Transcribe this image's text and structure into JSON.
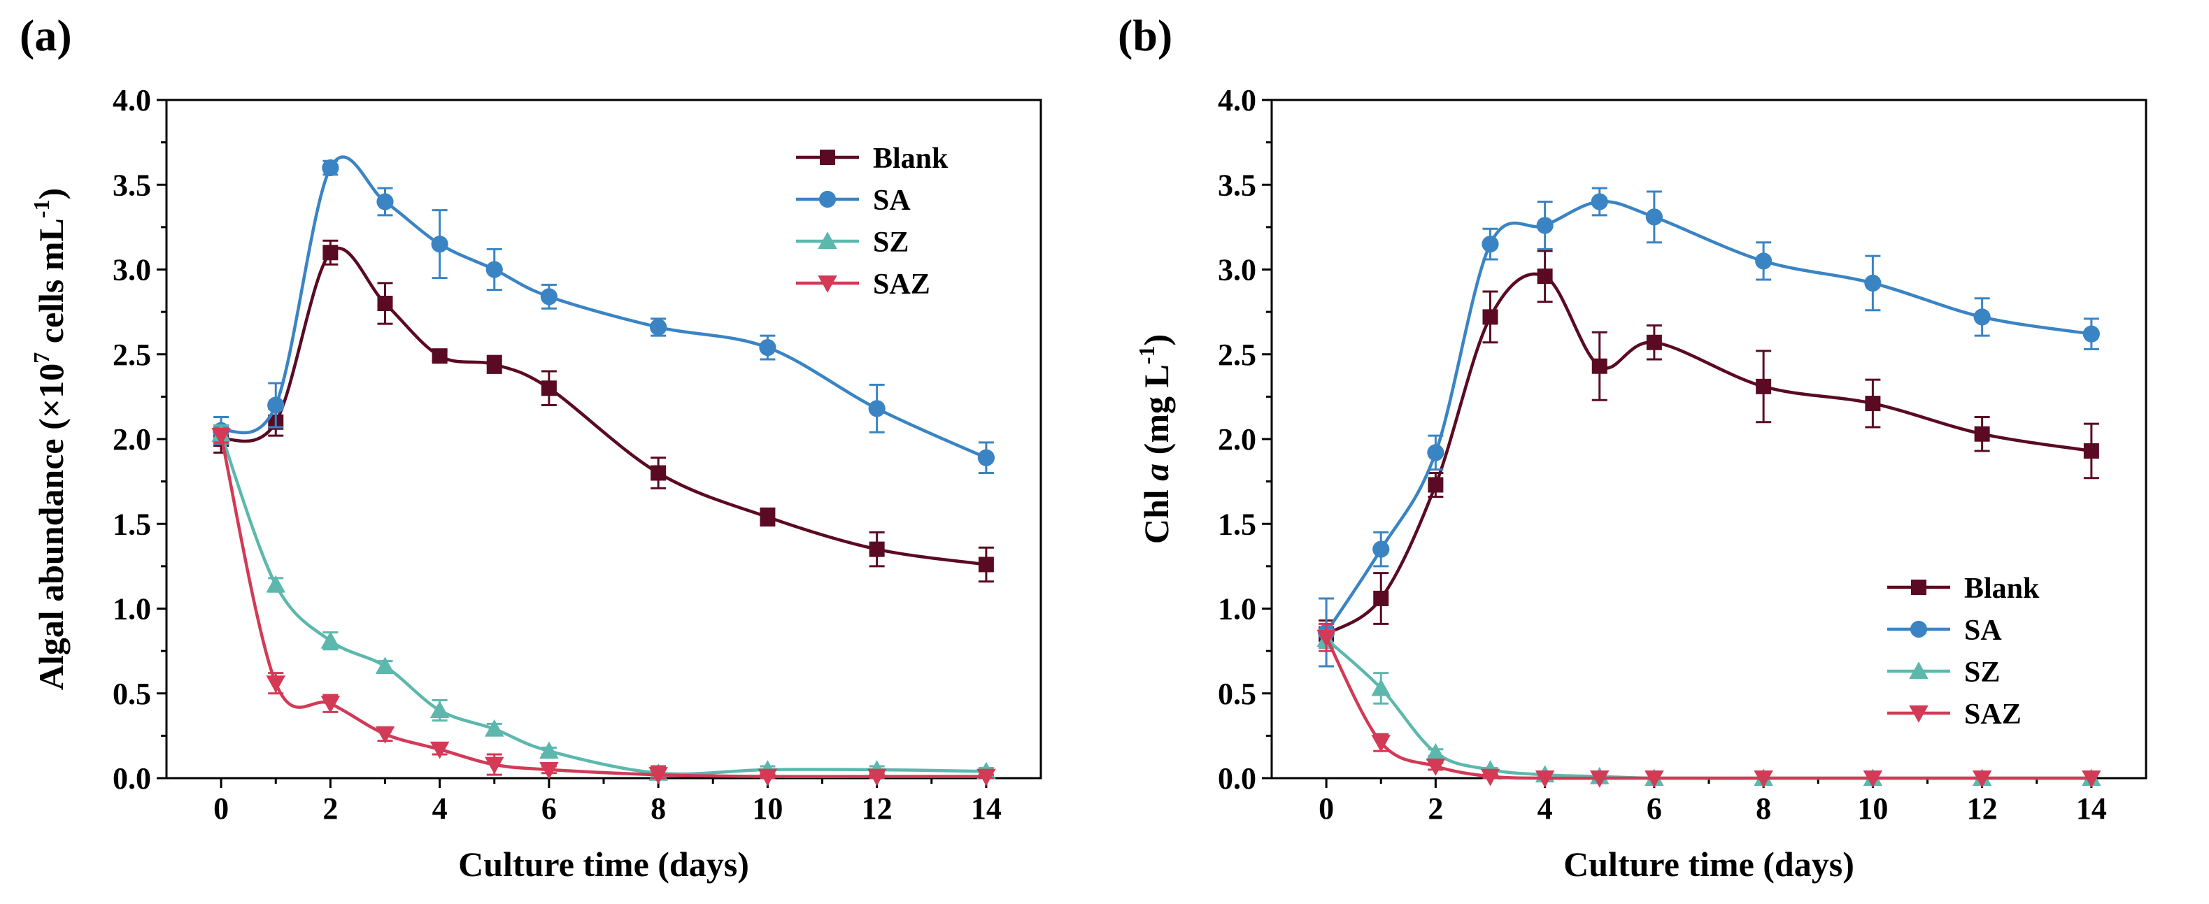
{
  "chart_data": [
    {
      "type": "line",
      "panel_label": "(a)",
      "xlabel": "Culture time (days)",
      "ylabel_parts": [
        "Algal abundance (×10",
        "7",
        " cells mL",
        "-1",
        ")"
      ],
      "xlim": [
        -1,
        15
      ],
      "ylim": [
        0,
        4.0
      ],
      "xticks": [
        0,
        2,
        4,
        6,
        8,
        10,
        12,
        14
      ],
      "yticks": [
        0.0,
        0.5,
        1.0,
        1.5,
        2.0,
        2.5,
        3.0,
        3.5,
        4.0
      ],
      "ytick_labels": [
        "0.0",
        "0.5",
        "1.0",
        "1.5",
        "2.0",
        "2.5",
        "3.0",
        "3.5",
        "4.0"
      ],
      "x": [
        0,
        1,
        2,
        3,
        4,
        5,
        6,
        8,
        10,
        12,
        14
      ],
      "legend_position": "top-right",
      "series": [
        {
          "name": "Blank",
          "color": "#5a0a22",
          "marker": "square",
          "values": [
            2.0,
            2.1,
            3.1,
            2.8,
            2.49,
            2.44,
            2.3,
            1.8,
            1.54,
            1.35,
            1.26
          ],
          "errors": [
            0.08,
            0.08,
            0.07,
            0.12,
            0.03,
            0.05,
            0.1,
            0.09,
            0.05,
            0.1,
            0.1
          ]
        },
        {
          "name": "SA",
          "color": "#3a84c4",
          "marker": "circle",
          "values": [
            2.05,
            2.2,
            3.6,
            3.4,
            3.15,
            3.0,
            2.84,
            2.66,
            2.54,
            2.18,
            1.89
          ],
          "errors": [
            0.08,
            0.13,
            0.04,
            0.08,
            0.2,
            0.12,
            0.07,
            0.05,
            0.07,
            0.14,
            0.09
          ]
        },
        {
          "name": "SZ",
          "color": "#5cb8ad",
          "marker": "triangle-up",
          "values": [
            2.03,
            1.14,
            0.81,
            0.66,
            0.4,
            0.29,
            0.16,
            0.03,
            0.05,
            0.05,
            0.04
          ],
          "errors": [
            0.05,
            0.04,
            0.05,
            0.03,
            0.06,
            0.03,
            0.02,
            0.02,
            0.02,
            0.02,
            0.02
          ]
        },
        {
          "name": "SAZ",
          "color": "#d23a56",
          "marker": "triangle-down",
          "values": [
            2.02,
            0.56,
            0.44,
            0.26,
            0.17,
            0.08,
            0.05,
            0.02,
            0.01,
            0.01,
            0.01
          ],
          "errors": [
            0.04,
            0.06,
            0.05,
            0.04,
            0.03,
            0.06,
            0.02,
            0.05,
            0.01,
            0.01,
            0.01
          ]
        }
      ]
    },
    {
      "type": "line",
      "panel_label": "(b)",
      "xlabel": "Culture time (days)",
      "ylabel_parts": [
        "Chl ",
        "a",
        " (mg L",
        "-1",
        ")"
      ],
      "xlim": [
        -1,
        15
      ],
      "ylim": [
        0,
        4.0
      ],
      "xticks": [
        0,
        2,
        4,
        6,
        8,
        10,
        12,
        14
      ],
      "yticks": [
        0.0,
        0.5,
        1.0,
        1.5,
        2.0,
        2.5,
        3.0,
        3.5,
        4.0
      ],
      "ytick_labels": [
        "0.0",
        "0.5",
        "1.0",
        "1.5",
        "2.0",
        "2.5",
        "3.0",
        "3.5",
        "4.0"
      ],
      "x": [
        0,
        1,
        2,
        3,
        4,
        5,
        6,
        8,
        10,
        12,
        14
      ],
      "legend_position": "center-right",
      "series": [
        {
          "name": "Blank",
          "color": "#5a0a22",
          "marker": "square",
          "values": [
            0.85,
            1.06,
            1.73,
            2.72,
            2.96,
            2.43,
            2.57,
            2.31,
            2.21,
            2.03,
            1.93
          ],
          "errors": [
            0.08,
            0.15,
            0.07,
            0.15,
            0.15,
            0.2,
            0.1,
            0.21,
            0.14,
            0.1,
            0.16
          ]
        },
        {
          "name": "SA",
          "color": "#3a84c4",
          "marker": "circle",
          "values": [
            0.86,
            1.35,
            1.92,
            3.15,
            3.26,
            3.4,
            3.31,
            3.05,
            2.92,
            2.72,
            2.62
          ],
          "errors": [
            0.2,
            0.1,
            0.1,
            0.09,
            0.14,
            0.08,
            0.15,
            0.11,
            0.16,
            0.11,
            0.09
          ]
        },
        {
          "name": "SZ",
          "color": "#5cb8ad",
          "marker": "triangle-up",
          "values": [
            0.82,
            0.53,
            0.15,
            0.05,
            0.02,
            0.01,
            0.0,
            0.0,
            0.0,
            0.0,
            0.0
          ],
          "errors": [
            0.05,
            0.09,
            0.02,
            0.01,
            0.01,
            0.0,
            0.0,
            0.0,
            0.0,
            0.0,
            0.0
          ]
        },
        {
          "name": "SAZ",
          "color": "#d23a56",
          "marker": "triangle-down",
          "values": [
            0.83,
            0.21,
            0.07,
            0.01,
            0.0,
            0.0,
            0.0,
            0.0,
            0.0,
            0.0,
            0.0
          ],
          "errors": [
            0.08,
            0.05,
            0.02,
            0.01,
            0.0,
            0.0,
            0.0,
            0.0,
            0.0,
            0.0,
            0.0
          ]
        }
      ]
    }
  ]
}
